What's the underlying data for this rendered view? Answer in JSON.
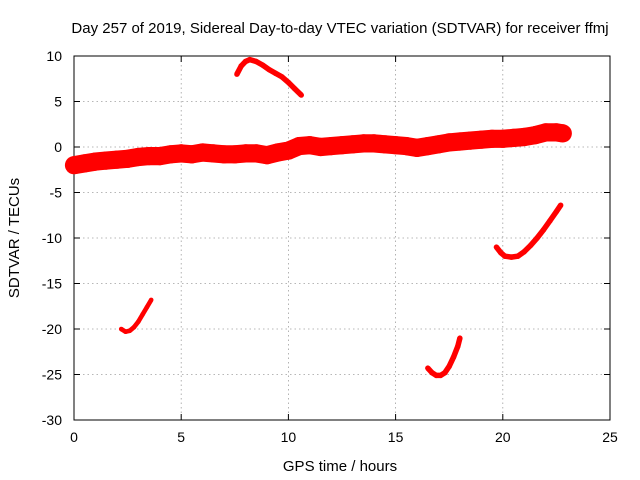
{
  "chart_data": {
    "type": "line",
    "title": "Day 257 of 2019, Sidereal Day-to-day VTEC variation (SDTVAR) for receiver ffmj",
    "xlabel": "GPS time / hours",
    "ylabel": "SDTVAR / TECUs",
    "xlim": [
      0,
      25
    ],
    "ylim": [
      -30,
      10
    ],
    "xticks": [
      0,
      5,
      10,
      15,
      20,
      25
    ],
    "yticks": [
      -30,
      -25,
      -20,
      -15,
      -10,
      -5,
      0,
      5,
      10
    ],
    "grid": true,
    "series_color": "#ff0000",
    "series": [
      {
        "name": "main-band",
        "thickness": 2.0,
        "x": [
          0,
          0.5,
          1,
          1.5,
          2,
          2.5,
          3,
          3.5,
          4,
          4.5,
          5,
          5.5,
          6,
          6.5,
          7,
          7.5,
          8,
          8.5,
          9,
          9.5,
          10,
          10.5,
          11,
          11.5,
          12,
          12.5,
          13,
          13.5,
          14,
          14.5,
          15,
          15.5,
          16,
          16.5,
          17,
          17.5,
          18,
          18.5,
          19,
          19.5,
          20,
          20.5,
          21,
          21.5,
          22,
          22.5,
          22.8
        ],
        "values": [
          -2.0,
          -1.8,
          -1.6,
          -1.5,
          -1.4,
          -1.3,
          -1.1,
          -1.0,
          -1.0,
          -0.8,
          -0.7,
          -0.8,
          -0.6,
          -0.7,
          -0.8,
          -0.8,
          -0.7,
          -0.7,
          -0.9,
          -0.6,
          -0.4,
          0.1,
          0.2,
          0.0,
          0.1,
          0.2,
          0.3,
          0.4,
          0.4,
          0.3,
          0.2,
          0.1,
          -0.1,
          0.1,
          0.3,
          0.5,
          0.6,
          0.7,
          0.8,
          0.9,
          0.9,
          1.0,
          1.1,
          1.3,
          1.6,
          1.6,
          1.5
        ]
      },
      {
        "name": "arc-top",
        "thickness": 0.6,
        "x": [
          7.6,
          7.8,
          8.0,
          8.2,
          8.5,
          8.8,
          9.1,
          9.4,
          9.7,
          10.0,
          10.3,
          10.6
        ],
        "values": [
          8.0,
          8.9,
          9.4,
          9.6,
          9.4,
          9.0,
          8.5,
          8.1,
          7.7,
          7.1,
          6.4,
          5.7
        ]
      },
      {
        "name": "arc-low-left",
        "thickness": 0.5,
        "x": [
          2.2,
          2.4,
          2.6,
          2.8,
          3.0,
          3.2,
          3.4,
          3.6
        ],
        "values": [
          -20.0,
          -20.3,
          -20.2,
          -19.8,
          -19.2,
          -18.4,
          -17.6,
          -16.8
        ]
      },
      {
        "name": "arc-low-mid",
        "thickness": 0.6,
        "x": [
          16.5,
          16.7,
          16.9,
          17.1,
          17.3,
          17.5,
          17.7,
          17.9,
          18.0
        ],
        "values": [
          -24.3,
          -24.8,
          -25.1,
          -25.1,
          -24.8,
          -24.1,
          -23.1,
          -21.9,
          -21.0
        ]
      },
      {
        "name": "arc-right",
        "thickness": 0.6,
        "x": [
          19.7,
          19.9,
          20.1,
          20.4,
          20.7,
          21.0,
          21.3,
          21.6,
          21.9,
          22.2,
          22.5,
          22.7
        ],
        "values": [
          -11.0,
          -11.6,
          -12.0,
          -12.1,
          -12.0,
          -11.5,
          -10.8,
          -10.0,
          -9.1,
          -8.1,
          -7.1,
          -6.4
        ]
      }
    ]
  }
}
